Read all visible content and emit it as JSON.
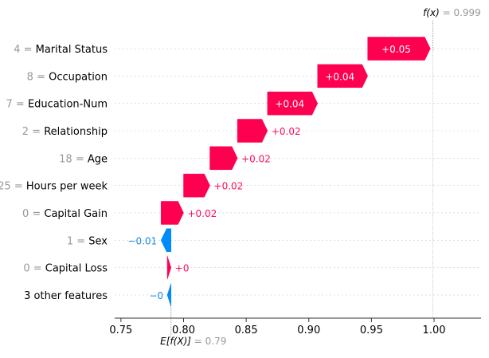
{
  "chart_data": {
    "type": "waterfall",
    "base_value": 0.79,
    "final_value": 0.999,
    "base_label": {
      "expr": "E[f(X)]",
      "eq": " = ",
      "value": "0.79"
    },
    "final_label": {
      "expr": "f(x)",
      "eq": " = ",
      "value": "0.999"
    },
    "xlim": [
      0.745,
      1.0375
    ],
    "xticks": [
      0.75,
      0.8,
      0.85,
      0.9,
      0.95,
      1.0
    ],
    "xtick_labels": [
      "0.75",
      "0.80",
      "0.85",
      "0.90",
      "0.95",
      "1.00"
    ],
    "colors": {
      "positive": "#ff0051",
      "negative": "#008bfb",
      "positive_text": "#ff0d57",
      "negative_text": "#1e88e5"
    },
    "features": [
      {
        "value": "4",
        "name": "Marital Status",
        "contribution": 0.05,
        "label": "+0.05"
      },
      {
        "value": "8",
        "name": "Occupation",
        "contribution": 0.04,
        "label": "+0.04"
      },
      {
        "value": "7",
        "name": "Education-Num",
        "contribution": 0.04,
        "label": "+0.04"
      },
      {
        "value": "2",
        "name": "Relationship",
        "contribution": 0.024,
        "label": "+0.02"
      },
      {
        "value": "18",
        "name": "Age",
        "contribution": 0.022,
        "label": "+0.02"
      },
      {
        "value": "25",
        "name": "Hours per week",
        "contribution": 0.021,
        "label": "+0.02"
      },
      {
        "value": "0",
        "name": "Capital Gain",
        "contribution": 0.018,
        "label": "+0.02"
      },
      {
        "value": "1",
        "name": "Sex",
        "contribution": -0.008,
        "label": "−0.01"
      },
      {
        "value": "0",
        "name": "Capital Loss",
        "contribution": 0.003,
        "label": "+0"
      },
      {
        "value": "",
        "name": "3 other features",
        "contribution": -0.003,
        "label": "−0"
      }
    ]
  }
}
